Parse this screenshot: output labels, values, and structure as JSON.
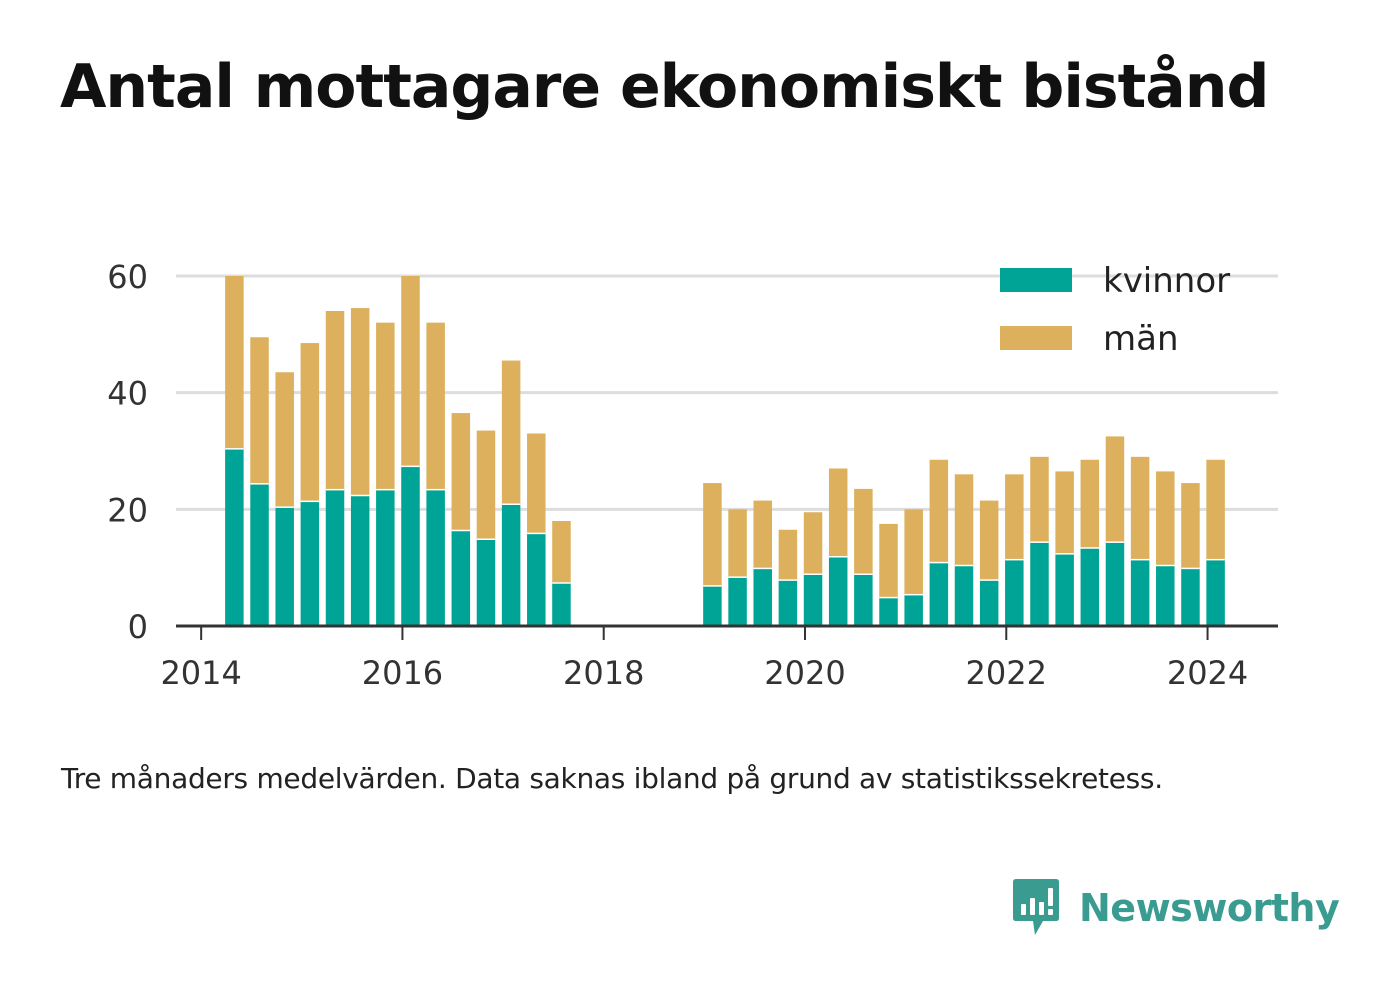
{
  "title": "Antal mottagare ekonomiskt bistånd",
  "footnote": "Tre månaders medelvärden. Data saknas ibland på grund av statistikssekretess.",
  "brand": {
    "name": "Newsworthy",
    "color": "#3a9b91",
    "icon": "chat-bar-chart-icon"
  },
  "colors": {
    "kvinnor": "#00a497",
    "män": "#dcb05c",
    "grid": "#dddddd",
    "axis": "#333333",
    "text": "#333333"
  },
  "chart_data": {
    "type": "bar",
    "stacked": true,
    "grid": true,
    "legend_position": "top-right",
    "xlim": [
      2013.75,
      2024.7
    ],
    "ylim": [
      0,
      60
    ],
    "y_ticks": [
      0,
      20,
      40,
      60
    ],
    "x_ticks": [
      2014,
      2016,
      2018,
      2020,
      2022,
      2024
    ],
    "x": [
      2014.33,
      2014.58,
      2014.83,
      2015.08,
      2015.33,
      2015.58,
      2015.83,
      2016.08,
      2016.33,
      2016.58,
      2016.83,
      2017.08,
      2017.33,
      2017.58,
      2019.08,
      2019.33,
      2019.58,
      2019.83,
      2020.08,
      2020.33,
      2020.58,
      2020.83,
      2021.08,
      2021.33,
      2021.58,
      2021.83,
      2022.08,
      2022.33,
      2022.58,
      2022.83,
      2023.08,
      2023.33,
      2023.58,
      2023.83,
      2024.08
    ],
    "series": [
      {
        "name": "kvinnor",
        "values": [
          30.5,
          24.5,
          20.5,
          21.5,
          23.5,
          22.5,
          23.5,
          27.5,
          23.5,
          16.5,
          15,
          21,
          16,
          7.5,
          7,
          8.5,
          10,
          8,
          9,
          12,
          9,
          5,
          5.5,
          11,
          10.5,
          8,
          11.5,
          14.5,
          12.5,
          13.5,
          14.5,
          11.5,
          10.5,
          10,
          11.5
        ]
      },
      {
        "name": "män",
        "values": [
          29.5,
          25,
          23,
          27,
          30.5,
          32,
          28.5,
          32.5,
          28.5,
          20,
          18.5,
          24.5,
          17,
          10.5,
          17.5,
          11.5,
          11.5,
          8.5,
          10.5,
          15,
          14.5,
          12.5,
          14.5,
          17.5,
          15.5,
          13.5,
          14.5,
          14.5,
          14,
          15,
          18,
          17.5,
          16,
          14.5,
          17
        ]
      }
    ]
  }
}
